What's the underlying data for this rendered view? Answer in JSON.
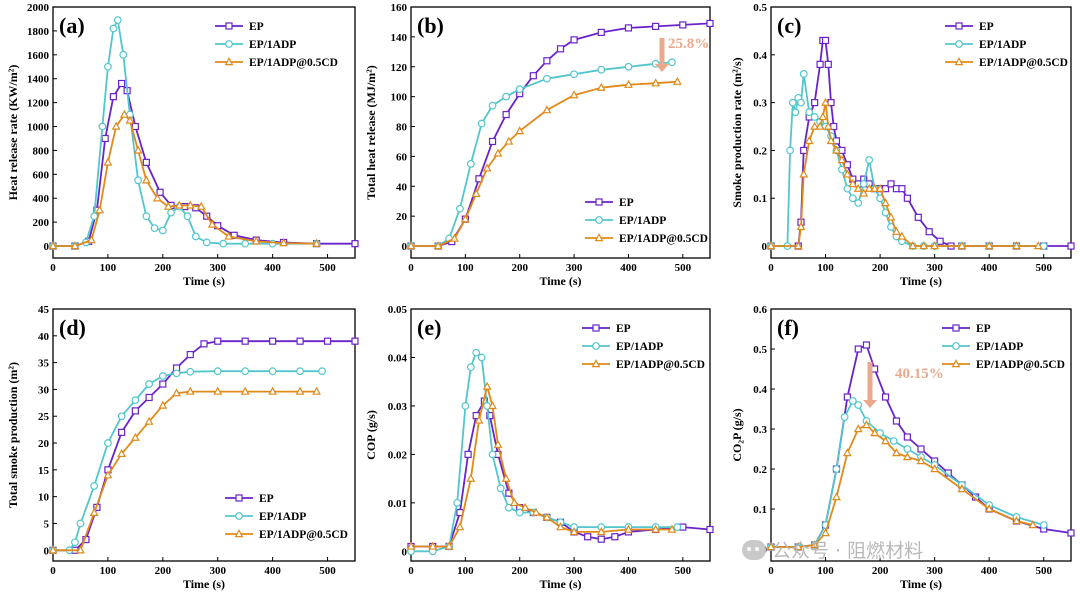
{
  "watermark": "公众号 · 阻燃材料",
  "colors": {
    "EP": "#6a22c9",
    "EP/1ADP": "#52c6cc",
    "EP/1ADP@0.5CD": "#e08a1a",
    "annotation": "#e8a98d"
  },
  "chart_data": [
    {
      "type": "line",
      "panel": "(a)",
      "xlabel": "Time (s)",
      "ylabel": "Heat release rate (KW/m²)",
      "xlim": [
        0,
        550
      ],
      "ylim": [
        -100,
        2000
      ],
      "xticks": [
        0,
        100,
        200,
        300,
        400,
        500
      ],
      "yticks": [
        0,
        200,
        400,
        600,
        800,
        1000,
        1200,
        1400,
        1600,
        1800,
        2000
      ],
      "legend": "top-right",
      "series": [
        {
          "name": "EP",
          "marker": "square",
          "x": [
            0,
            40,
            65,
            80,
            95,
            110,
            125,
            135,
            150,
            170,
            195,
            215,
            240,
            260,
            280,
            300,
            330,
            370,
            420,
            480,
            550
          ],
          "y": [
            0,
            0,
            40,
            300,
            900,
            1250,
            1360,
            1300,
            1000,
            700,
            450,
            340,
            330,
            320,
            250,
            170,
            90,
            50,
            30,
            20,
            20
          ]
        },
        {
          "name": "EP/1ADP",
          "marker": "circle",
          "x": [
            0,
            40,
            60,
            75,
            90,
            100,
            110,
            118,
            128,
            140,
            155,
            170,
            185,
            200,
            215,
            230,
            245,
            260,
            280,
            310,
            350,
            400,
            480
          ],
          "y": [
            0,
            0,
            30,
            250,
            1000,
            1500,
            1820,
            1890,
            1600,
            1100,
            550,
            250,
            150,
            130,
            280,
            330,
            250,
            80,
            30,
            20,
            20,
            20,
            20
          ]
        },
        {
          "name": "EP/1ADP@0.5CD",
          "marker": "triangle",
          "x": [
            0,
            40,
            70,
            85,
            100,
            115,
            130,
            140,
            155,
            170,
            190,
            210,
            230,
            250,
            270,
            290,
            320,
            370,
            420,
            480
          ],
          "y": [
            0,
            0,
            50,
            300,
            700,
            1000,
            1100,
            1050,
            800,
            550,
            400,
            330,
            340,
            340,
            330,
            180,
            80,
            40,
            25,
            20
          ]
        }
      ]
    },
    {
      "type": "line",
      "panel": "(b)",
      "xlabel": "Time (s)",
      "ylabel": "Total heat release (MJ/m²)",
      "xlim": [
        0,
        550
      ],
      "ylim": [
        -8,
        160
      ],
      "xticks": [
        0,
        100,
        200,
        300,
        400,
        500
      ],
      "yticks": [
        0,
        20,
        40,
        60,
        80,
        100,
        120,
        140,
        160
      ],
      "legend": "bottom-right",
      "annotation": "25.8%",
      "series": [
        {
          "name": "EP",
          "marker": "square",
          "x": [
            0,
            50,
            75,
            100,
            125,
            150,
            175,
            200,
            225,
            250,
            275,
            300,
            350,
            400,
            450,
            500,
            550
          ],
          "y": [
            0,
            0,
            3,
            18,
            45,
            70,
            88,
            102,
            114,
            124,
            132,
            138,
            143,
            146,
            147,
            148,
            149
          ]
        },
        {
          "name": "EP/1ADP",
          "marker": "circle",
          "x": [
            0,
            50,
            70,
            90,
            110,
            130,
            150,
            175,
            200,
            250,
            300,
            350,
            400,
            450,
            480
          ],
          "y": [
            0,
            0,
            5,
            25,
            55,
            82,
            94,
            100,
            105,
            112,
            115,
            118,
            120,
            122,
            123
          ]
        },
        {
          "name": "EP/1ADP@0.5CD",
          "marker": "triangle",
          "x": [
            0,
            50,
            80,
            100,
            120,
            140,
            160,
            180,
            200,
            250,
            300,
            350,
            400,
            450,
            490
          ],
          "y": [
            0,
            0,
            5,
            18,
            35,
            52,
            62,
            70,
            77,
            91,
            101,
            106,
            108,
            109,
            110
          ]
        }
      ]
    },
    {
      "type": "line",
      "panel": "(c)",
      "xlabel": "Time (s)",
      "ylabel": "Smoke production rate (m²/s)",
      "xlim": [
        0,
        550
      ],
      "ylim": [
        -0.025,
        0.5
      ],
      "xticks": [
        0,
        100,
        200,
        300,
        400,
        500
      ],
      "yticks": [
        0.0,
        0.1,
        0.2,
        0.3,
        0.4,
        0.5
      ],
      "legend": "top-right",
      "series": [
        {
          "name": "EP",
          "marker": "square",
          "x": [
            0,
            50,
            55,
            60,
            70,
            80,
            90,
            95,
            100,
            105,
            110,
            115,
            120,
            130,
            140,
            150,
            160,
            170,
            180,
            190,
            200,
            210,
            220,
            230,
            240,
            250,
            270,
            290,
            310,
            330,
            350,
            400,
            450,
            500,
            550
          ],
          "y": [
            0,
            0,
            0.05,
            0.2,
            0.27,
            0.3,
            0.38,
            0.43,
            0.43,
            0.38,
            0.3,
            0.25,
            0.22,
            0.2,
            0.17,
            0.14,
            0.13,
            0.14,
            0.13,
            0.12,
            0.12,
            0.12,
            0.13,
            0.12,
            0.12,
            0.1,
            0.06,
            0.03,
            0.01,
            0,
            0,
            0,
            0,
            0,
            0
          ]
        },
        {
          "name": "EP/1ADP",
          "marker": "circle",
          "x": [
            0,
            30,
            35,
            40,
            45,
            50,
            55,
            60,
            70,
            80,
            90,
            100,
            110,
            120,
            130,
            140,
            150,
            160,
            170,
            180,
            190,
            200,
            210,
            220,
            230,
            240,
            260,
            280,
            300,
            350,
            400,
            450,
            500
          ],
          "y": [
            0,
            0,
            0.2,
            0.3,
            0.28,
            0.31,
            0.3,
            0.36,
            0.28,
            0.27,
            0.26,
            0.25,
            0.23,
            0.2,
            0.16,
            0.12,
            0.1,
            0.09,
            0.13,
            0.18,
            0.12,
            0.1,
            0.07,
            0.04,
            0.02,
            0.01,
            0,
            0,
            0,
            0,
            0,
            0,
            0
          ]
        },
        {
          "name": "EP/1ADP@0.5CD",
          "marker": "triangle",
          "x": [
            0,
            50,
            55,
            60,
            70,
            80,
            90,
            95,
            100,
            105,
            110,
            120,
            130,
            140,
            150,
            160,
            170,
            180,
            190,
            200,
            210,
            220,
            230,
            240,
            260,
            280,
            300,
            350,
            400,
            450,
            490
          ],
          "y": [
            0,
            0,
            0.04,
            0.15,
            0.22,
            0.25,
            0.25,
            0.27,
            0.3,
            0.25,
            0.22,
            0.2,
            0.18,
            0.15,
            0.13,
            0.12,
            0.11,
            0.12,
            0.12,
            0.12,
            0.09,
            0.06,
            0.03,
            0.02,
            0,
            0,
            0,
            0,
            0,
            0,
            0
          ]
        }
      ]
    },
    {
      "type": "line",
      "panel": "(d)",
      "xlabel": "Time (s)",
      "ylabel": "Total smoke production (m²)",
      "xlim": [
        0,
        550
      ],
      "ylim": [
        -2,
        45
      ],
      "xticks": [
        0,
        100,
        200,
        300,
        400,
        500
      ],
      "yticks": [
        0,
        5,
        10,
        15,
        20,
        25,
        30,
        35,
        40,
        45
      ],
      "legend": "bottom-right",
      "series": [
        {
          "name": "EP",
          "marker": "square",
          "x": [
            0,
            40,
            60,
            80,
            100,
            125,
            150,
            175,
            200,
            225,
            250,
            275,
            300,
            350,
            400,
            450,
            500,
            550
          ],
          "y": [
            0,
            0,
            2,
            8,
            15,
            22,
            26,
            28.5,
            31,
            34,
            36.5,
            38.5,
            39,
            39,
            39,
            39,
            39,
            39
          ]
        },
        {
          "name": "EP/1ADP",
          "marker": "circle",
          "x": [
            0,
            30,
            40,
            50,
            75,
            100,
            125,
            150,
            175,
            200,
            225,
            250,
            300,
            350,
            400,
            450,
            490
          ],
          "y": [
            0,
            0,
            1.5,
            5,
            12,
            20,
            25,
            28,
            31,
            32.5,
            33,
            33.3,
            33.4,
            33.4,
            33.4,
            33.4,
            33.4
          ]
        },
        {
          "name": "EP/1ADP@0.5CD",
          "marker": "triangle",
          "x": [
            0,
            50,
            75,
            100,
            125,
            150,
            175,
            200,
            225,
            250,
            300,
            350,
            400,
            450,
            480
          ],
          "y": [
            0,
            0,
            7,
            14,
            18,
            21,
            24,
            27,
            29.3,
            29.6,
            29.6,
            29.6,
            29.6,
            29.6,
            29.6
          ]
        }
      ]
    },
    {
      "type": "line",
      "panel": "(e)",
      "xlabel": "Time (s)",
      "ylabel": "COP  (g/s)",
      "xlim": [
        0,
        550
      ],
      "ylim": [
        -0.002,
        0.05
      ],
      "xticks": [
        0,
        100,
        200,
        300,
        400,
        500
      ],
      "yticks": [
        0.0,
        0.01,
        0.02,
        0.03,
        0.04,
        0.05
      ],
      "legend": "top-right",
      "series": [
        {
          "name": "EP",
          "marker": "square",
          "x": [
            0,
            40,
            70,
            90,
            105,
            120,
            135,
            145,
            160,
            180,
            200,
            225,
            250,
            275,
            300,
            325,
            350,
            375,
            400,
            450,
            500,
            550
          ],
          "y": [
            0.001,
            0.001,
            0.001,
            0.008,
            0.02,
            0.028,
            0.031,
            0.028,
            0.02,
            0.012,
            0.009,
            0.008,
            0.007,
            0.006,
            0.004,
            0.003,
            0.0025,
            0.003,
            0.004,
            0.0045,
            0.005,
            0.0045
          ]
        },
        {
          "name": "EP/1ADP",
          "marker": "circle",
          "x": [
            0,
            40,
            70,
            85,
            100,
            110,
            120,
            130,
            140,
            150,
            165,
            180,
            200,
            225,
            250,
            275,
            300,
            350,
            400,
            450,
            490
          ],
          "y": [
            0,
            0,
            0.001,
            0.01,
            0.03,
            0.038,
            0.041,
            0.04,
            0.03,
            0.02,
            0.013,
            0.009,
            0.008,
            0.008,
            0.007,
            0.006,
            0.005,
            0.005,
            0.005,
            0.005,
            0.005
          ]
        },
        {
          "name": "EP/1ADP@0.5CD",
          "marker": "triangle",
          "x": [
            0,
            40,
            70,
            90,
            110,
            125,
            140,
            150,
            160,
            175,
            190,
            210,
            230,
            250,
            275,
            300,
            350,
            400,
            450,
            480
          ],
          "y": [
            0.001,
            0.001,
            0.001,
            0.005,
            0.015,
            0.027,
            0.034,
            0.03,
            0.022,
            0.015,
            0.01,
            0.009,
            0.008,
            0.007,
            0.005,
            0.004,
            0.004,
            0.0045,
            0.0045,
            0.0045
          ]
        }
      ]
    },
    {
      "type": "line",
      "panel": "(f)",
      "xlabel": "Time (s)",
      "ylabel": "CO₂P (g/s)",
      "xlim": [
        0,
        550
      ],
      "ylim": [
        -0.03,
        0.6
      ],
      "xticks": [
        0,
        100,
        200,
        300,
        400,
        500
      ],
      "yticks": [
        0.0,
        0.1,
        0.2,
        0.3,
        0.4,
        0.5,
        0.6
      ],
      "legend": "top-right",
      "annotation": "40.15%",
      "series": [
        {
          "name": "EP",
          "marker": "square",
          "x": [
            0,
            50,
            80,
            100,
            120,
            140,
            160,
            175,
            190,
            210,
            230,
            250,
            275,
            300,
            325,
            350,
            375,
            400,
            450,
            500,
            550
          ],
          "y": [
            0.005,
            0.005,
            0.01,
            0.06,
            0.2,
            0.38,
            0.5,
            0.51,
            0.45,
            0.38,
            0.32,
            0.28,
            0.25,
            0.22,
            0.19,
            0.16,
            0.13,
            0.1,
            0.07,
            0.05,
            0.04
          ]
        },
        {
          "name": "EP/1ADP",
          "marker": "circle",
          "x": [
            0,
            50,
            80,
            100,
            120,
            135,
            150,
            160,
            175,
            200,
            225,
            250,
            275,
            300,
            350,
            400,
            450,
            500
          ],
          "y": [
            0.005,
            0.005,
            0.01,
            0.06,
            0.2,
            0.33,
            0.37,
            0.36,
            0.32,
            0.29,
            0.27,
            0.25,
            0.23,
            0.21,
            0.16,
            0.11,
            0.08,
            0.06
          ]
        },
        {
          "name": "EP/1ADP@0.5CD",
          "marker": "triangle",
          "x": [
            0,
            50,
            80,
            100,
            120,
            140,
            160,
            175,
            190,
            210,
            230,
            250,
            275,
            300,
            350,
            400,
            450,
            480
          ],
          "y": [
            0.005,
            0.005,
            0.01,
            0.04,
            0.13,
            0.24,
            0.3,
            0.31,
            0.29,
            0.27,
            0.24,
            0.23,
            0.22,
            0.2,
            0.15,
            0.1,
            0.07,
            0.06
          ]
        }
      ]
    }
  ]
}
